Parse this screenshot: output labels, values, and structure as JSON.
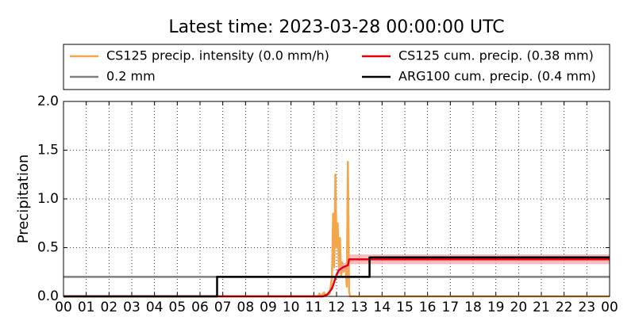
{
  "chart_data": {
    "type": "line",
    "title": "Latest time: 2023-03-28 00:00:00 UTC",
    "y_label": "Precipitation",
    "xlim": [
      0,
      24
    ],
    "xticks": [
      {
        "value": 0,
        "label": "00"
      },
      {
        "value": 1,
        "label": "01"
      },
      {
        "value": 2,
        "label": "02"
      },
      {
        "value": 3,
        "label": "03"
      },
      {
        "value": 4,
        "label": "04"
      },
      {
        "value": 5,
        "label": "05"
      },
      {
        "value": 6,
        "label": "06"
      },
      {
        "value": 7,
        "label": "07"
      },
      {
        "value": 8,
        "label": "08"
      },
      {
        "value": 9,
        "label": "09"
      },
      {
        "value": 10,
        "label": "10"
      },
      {
        "value": 11,
        "label": "11"
      },
      {
        "value": 12,
        "label": "12"
      },
      {
        "value": 13,
        "label": "13"
      },
      {
        "value": 14,
        "label": "14"
      },
      {
        "value": 15,
        "label": "15"
      },
      {
        "value": 16,
        "label": "16"
      },
      {
        "value": 17,
        "label": "17"
      },
      {
        "value": 18,
        "label": "18"
      },
      {
        "value": 19,
        "label": "19"
      },
      {
        "value": 20,
        "label": "20"
      },
      {
        "value": 21,
        "label": "21"
      },
      {
        "value": 22,
        "label": "22"
      },
      {
        "value": 23,
        "label": "23"
      },
      {
        "value": 24,
        "label": "00"
      }
    ],
    "ylim": [
      0,
      2
    ],
    "yticks": [
      {
        "value": 0,
        "label": "0.0"
      },
      0.5,
      {
        "value": 1,
        "label": "1.0"
      },
      1.5,
      {
        "value": 2,
        "label": "2.0"
      }
    ],
    "grid": true,
    "series": [
      {
        "name": "CS125 precip. intensity (0.0 mm/h)",
        "color": "#f5a54a",
        "x": [
          0,
          11.2,
          11.25,
          11.3,
          11.45,
          11.5,
          11.55,
          11.7,
          11.8,
          11.85,
          11.9,
          11.95,
          12.0,
          12.05,
          12.1,
          12.15,
          12.2,
          12.25,
          12.3,
          12.4,
          12.45,
          12.5,
          12.55,
          12.6,
          24
        ],
        "values": [
          0,
          0,
          0.03,
          0,
          0.04,
          0,
          0.02,
          0.03,
          0.2,
          0.85,
          0.3,
          1.25,
          0.5,
          0.75,
          0.3,
          0.6,
          0.2,
          0.35,
          0.25,
          0.3,
          0.1,
          1.38,
          0.05,
          0,
          0
        ]
      },
      {
        "name": "0.2 mm",
        "color": "#808080",
        "x": [
          0,
          24
        ],
        "values": [
          0.2,
          0.2
        ]
      },
      {
        "name": "CS125 cum. precip. (0.38 mm)",
        "color": "#e8000b",
        "x": [
          0,
          11.4,
          11.6,
          11.8,
          11.9,
          12.0,
          12.1,
          12.3,
          12.5,
          12.55,
          24
        ],
        "values": [
          0,
          0,
          0.02,
          0.08,
          0.15,
          0.22,
          0.27,
          0.3,
          0.32,
          0.38,
          0.38
        ],
        "band_low": [
          0,
          0,
          0.02,
          0.07,
          0.13,
          0.19,
          0.23,
          0.26,
          0.28,
          0.33,
          0.33
        ],
        "band_high": [
          0,
          0,
          0.02,
          0.09,
          0.17,
          0.25,
          0.31,
          0.34,
          0.36,
          0.43,
          0.43
        ],
        "band_color": "#f4a0a8"
      },
      {
        "name": "ARG100 cum. precip. (0.4 mm)",
        "color": "#000000",
        "x": [
          0,
          6.75,
          6.75,
          13.45,
          13.45,
          24
        ],
        "values": [
          0,
          0,
          0.2,
          0.2,
          0.4,
          0.4
        ]
      }
    ]
  }
}
